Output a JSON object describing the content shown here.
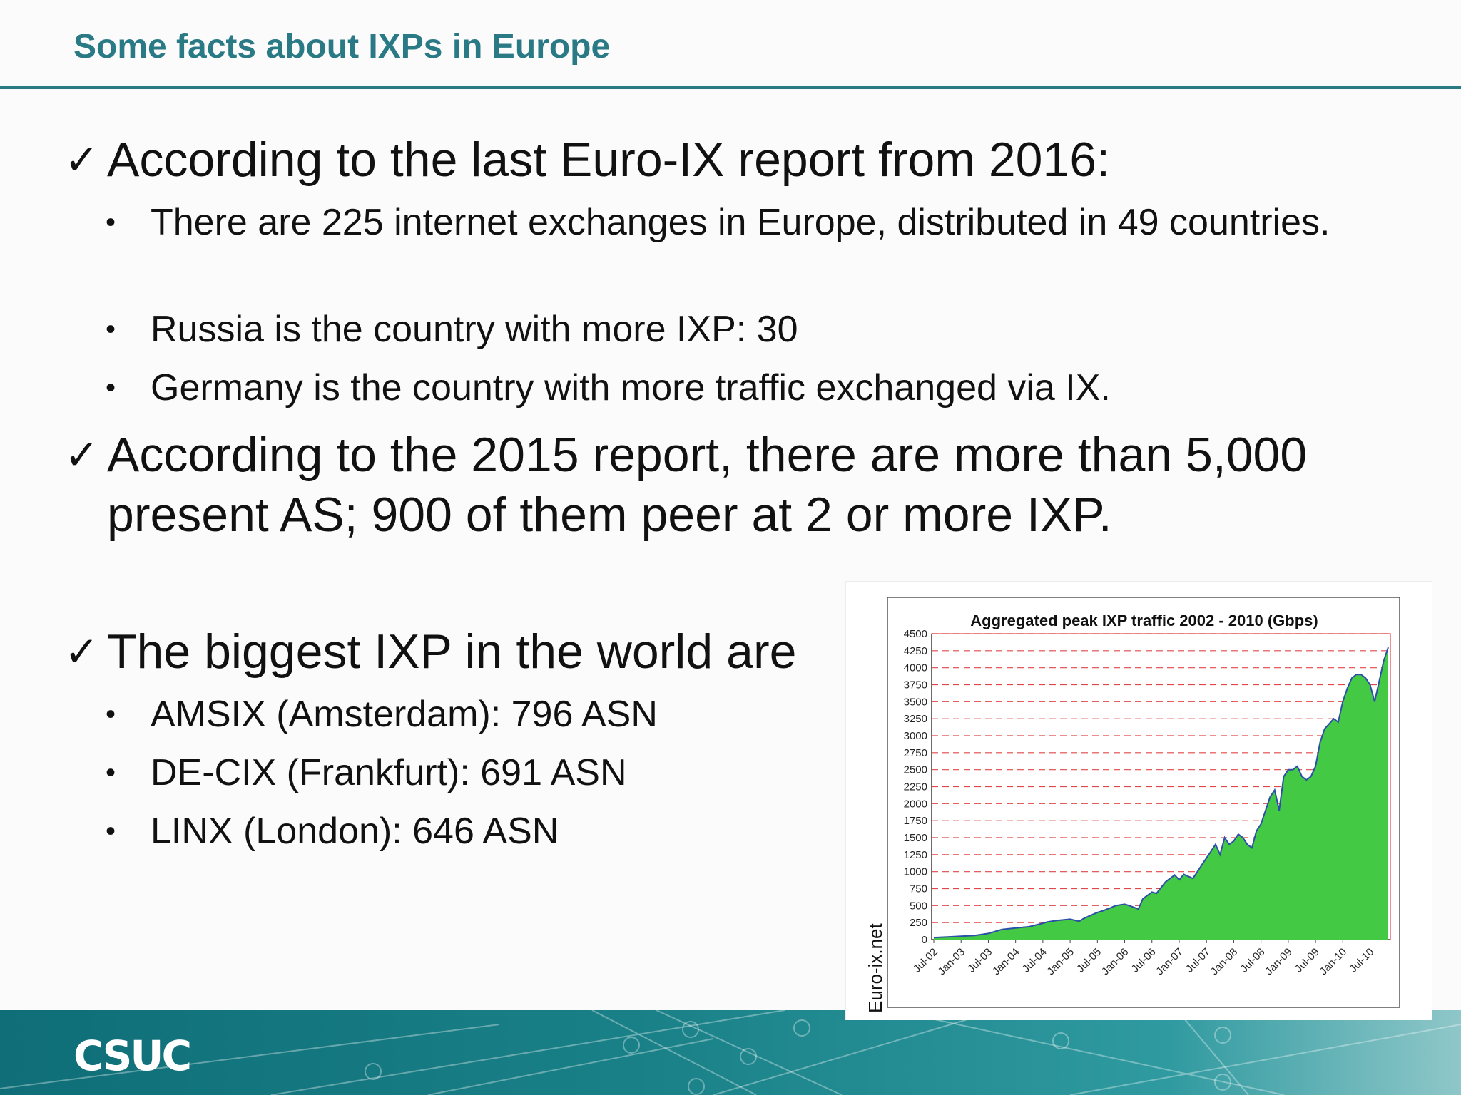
{
  "slide": {
    "title": "Some facts about IXPs in Europe",
    "check_glyph": "✓",
    "bullet_glyph": "•",
    "points": [
      {
        "text": "According to the last Euro-IX report from 2016:",
        "subpoints": [
          "There are 225 internet exchanges in Europe, distributed in 49 countries.",
          "Russia is the country with more IXP: 30",
          "Germany is the country with more traffic exchanged via IX."
        ]
      },
      {
        "text": "According to the 2015 report, there are more than 5,000 present AS; 900 of them peer at 2 or more IXP.",
        "subpoints": []
      },
      {
        "text": "The biggest IXP in the world are",
        "subpoints": [
          "AMSIX (Amsterdam): 796 ASN",
          "DE-CIX (Frankfurt): 691 ASN",
          "LINX (London): 646 ASN"
        ]
      }
    ]
  },
  "footer": {
    "logo_text": "CSUC"
  },
  "colors": {
    "title": "#2a7a86",
    "area_fill": "#44c944",
    "area_line": "#2b4fa8",
    "grid": "#e04848"
  },
  "chart_data": {
    "type": "area",
    "title": "Aggregated peak IXP traffic 2002 - 2010 (Gbps)",
    "side_label": "Euro-ix.net",
    "ylim": [
      0,
      4500
    ],
    "yticks": [
      0,
      250,
      500,
      750,
      1000,
      1250,
      1500,
      1750,
      2000,
      2250,
      2500,
      2750,
      3000,
      3250,
      3500,
      3750,
      4000,
      4250,
      4500
    ],
    "grid": "dashed horizontal",
    "xtick_labels": [
      "Jul-02",
      "Jan-03",
      "Jul-03",
      "Jan-04",
      "Jul-04",
      "Jan-05",
      "Jul-05",
      "Jan-06",
      "Jul-06",
      "Jan-07",
      "Jul-07",
      "Jan-08",
      "Jul-08",
      "Jan-09",
      "Jul-09",
      "Jan-10",
      "Jul-10"
    ],
    "x_months_from_jul02": [
      0,
      3,
      6,
      9,
      12,
      15,
      18,
      21,
      24,
      25,
      27,
      30,
      32,
      33,
      35,
      36,
      37,
      39,
      40,
      42,
      43,
      45,
      46,
      47,
      48,
      49,
      51,
      52,
      53,
      54,
      55,
      57,
      58,
      59,
      60,
      61,
      62,
      63,
      64,
      65,
      66,
      67,
      68,
      69,
      70,
      71,
      72,
      73,
      74,
      75,
      76,
      77,
      78,
      79,
      80,
      81,
      82,
      83,
      84,
      85,
      86,
      88,
      89,
      90,
      91,
      92,
      93,
      94,
      95,
      96,
      97,
      98,
      99,
      100
    ],
    "values": [
      30,
      40,
      50,
      60,
      90,
      150,
      170,
      190,
      240,
      260,
      280,
      300,
      270,
      310,
      370,
      400,
      420,
      470,
      500,
      520,
      500,
      450,
      600,
      650,
      700,
      680,
      850,
      900,
      950,
      880,
      960,
      900,
      1000,
      1100,
      1200,
      1300,
      1400,
      1250,
      1500,
      1400,
      1450,
      1550,
      1500,
      1400,
      1350,
      1600,
      1700,
      1900,
      2100,
      2200,
      1900,
      2400,
      2500,
      2500,
      2550,
      2400,
      2350,
      2400,
      2550,
      2900,
      3100,
      3250,
      3200,
      3500,
      3700,
      3850,
      3900,
      3900,
      3850,
      3750,
      3500,
      3800,
      4100,
      4300
    ]
  }
}
